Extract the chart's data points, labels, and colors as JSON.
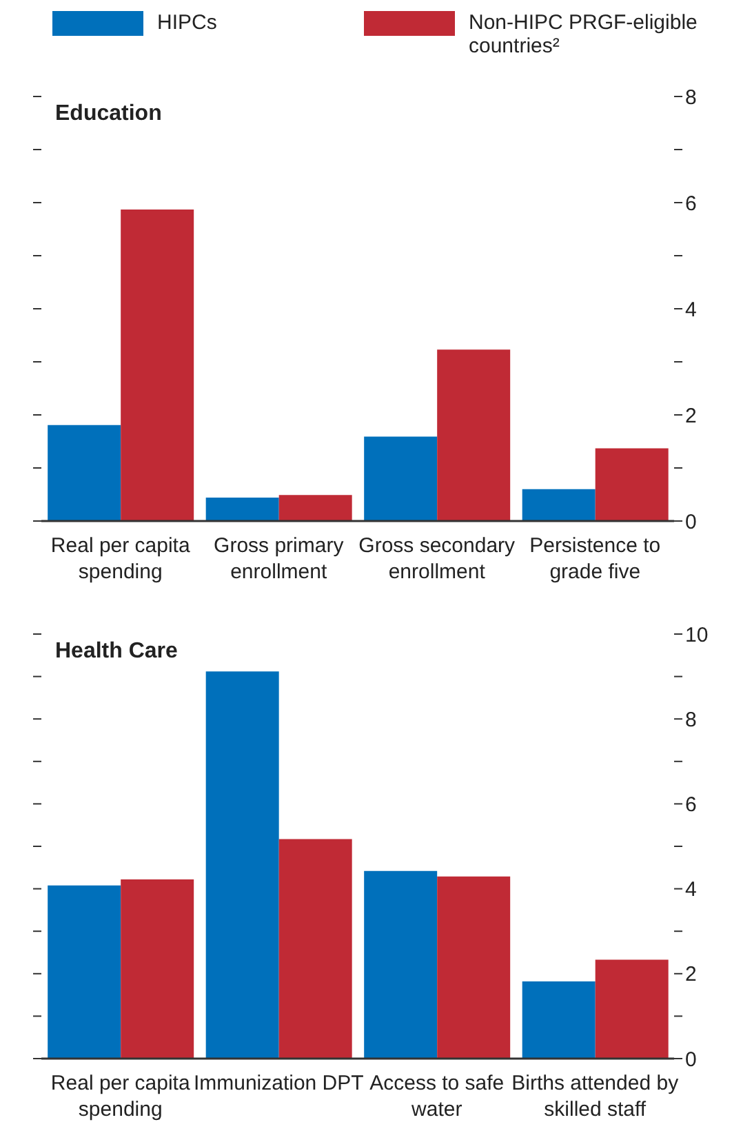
{
  "chart_data": [
    {
      "type": "bar",
      "title": "Education",
      "categories": [
        "Real per capita spending",
        "Gross primary enrollment",
        "Gross secondary enrollment",
        "Persistence to grade five"
      ],
      "series": [
        {
          "name": "HIPCs",
          "color": "#0070bb",
          "values": [
            1.81,
            0.44,
            1.59,
            0.6
          ]
        },
        {
          "name": "Non-HIPC PRGF-eligible countries²",
          "color": "#c02a35",
          "values": [
            5.87,
            0.49,
            3.23,
            1.37
          ]
        }
      ],
      "ylim": [
        0,
        8
      ],
      "yticks": [
        0,
        {
          "value": 1,
          "label": null
        },
        2,
        {
          "value": 3,
          "label": null
        },
        4,
        {
          "value": 5,
          "label": null
        },
        6,
        {
          "value": 7,
          "label": null
        },
        8
      ],
      "legend": "top"
    },
    {
      "type": "bar",
      "title": "Health Care",
      "categories": [
        "Real per capita spending",
        "Immunization DPT",
        "Access to safe water",
        "Births attended by skilled staff"
      ],
      "series": [
        {
          "color": "#0070bb",
          "values": [
            4.08,
            9.12,
            4.42,
            1.82
          ]
        },
        {
          "color": "#c02a35",
          "values": [
            4.22,
            5.17,
            4.29,
            2.33
          ]
        }
      ],
      "ylim": [
        0,
        10
      ],
      "yticks": [
        0,
        {
          "value": 1,
          "label": null
        },
        2,
        {
          "value": 3,
          "label": null
        },
        4,
        {
          "value": 5,
          "label": null
        },
        6,
        {
          "value": 7,
          "label": null
        },
        8,
        {
          "value": 9,
          "label": null
        },
        10
      ]
    }
  ]
}
